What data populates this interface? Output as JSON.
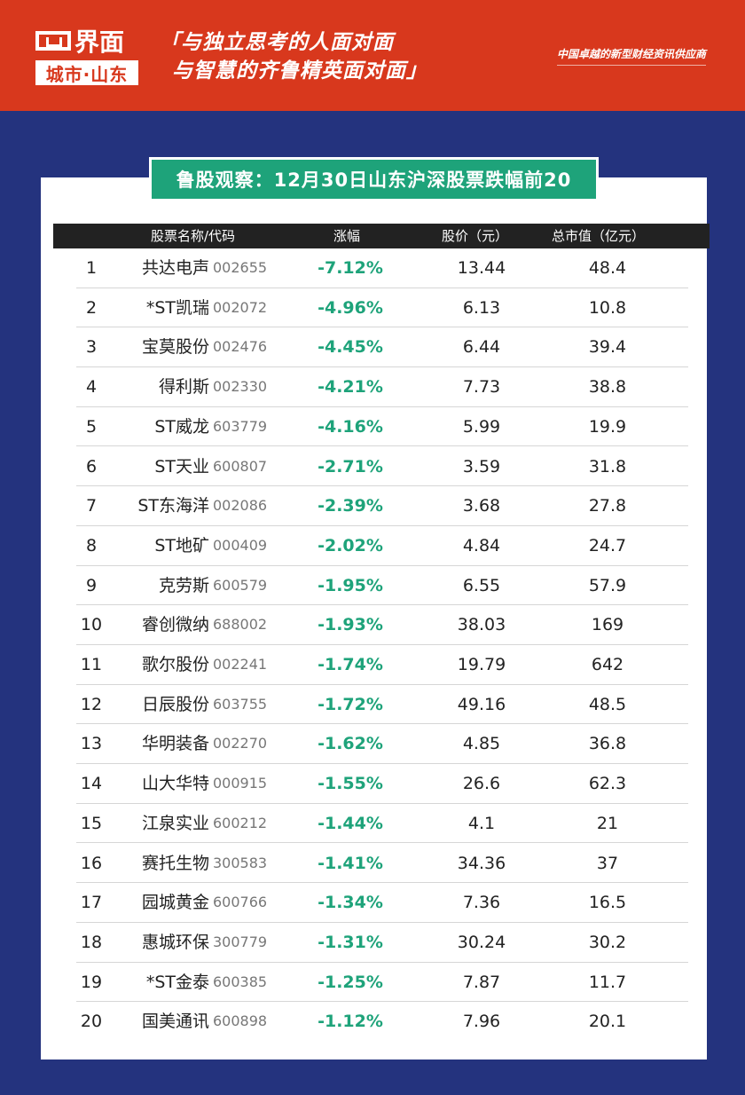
{
  "header": {
    "logo_top": "界面",
    "logo_bottom": "城市·山东",
    "slogan_line1": "「与独立思考的人面对面",
    "slogan_line2": "与智慧的齐鲁精英面对面」",
    "tagline": "中国卓越的新型财经资讯供应商",
    "bg_color": "#d8381d"
  },
  "title": "鲁股观察：12月30日山东沪深股票跌幅前20",
  "columns": {
    "name": "股票名称/代码",
    "change": "涨幅",
    "price": "股价（元）",
    "cap": "总市值（亿元）"
  },
  "rows": [
    {
      "rank": "1",
      "name": "共达电声",
      "code": "002655",
      "change": "-7.12%",
      "price": "13.44",
      "cap": "48.4"
    },
    {
      "rank": "2",
      "name": "*ST凯瑞",
      "code": "002072",
      "change": "-4.96%",
      "price": "6.13",
      "cap": "10.8"
    },
    {
      "rank": "3",
      "name": "宝莫股份",
      "code": "002476",
      "change": "-4.45%",
      "price": "6.44",
      "cap": "39.4"
    },
    {
      "rank": "4",
      "name": "得利斯",
      "code": "002330",
      "change": "-4.21%",
      "price": "7.73",
      "cap": "38.8"
    },
    {
      "rank": "5",
      "name": "ST威龙",
      "code": "603779",
      "change": "-4.16%",
      "price": "5.99",
      "cap": "19.9"
    },
    {
      "rank": "6",
      "name": "ST天业",
      "code": "600807",
      "change": "-2.71%",
      "price": "3.59",
      "cap": "31.8"
    },
    {
      "rank": "7",
      "name": "ST东海洋",
      "code": "002086",
      "change": "-2.39%",
      "price": "3.68",
      "cap": "27.8"
    },
    {
      "rank": "8",
      "name": "ST地矿",
      "code": "000409",
      "change": "-2.02%",
      "price": "4.84",
      "cap": "24.7"
    },
    {
      "rank": "9",
      "name": "克劳斯",
      "code": "600579",
      "change": "-1.95%",
      "price": "6.55",
      "cap": "57.9"
    },
    {
      "rank": "10",
      "name": "睿创微纳",
      "code": "688002",
      "change": "-1.93%",
      "price": "38.03",
      "cap": "169"
    },
    {
      "rank": "11",
      "name": "歌尔股份",
      "code": "002241",
      "change": "-1.74%",
      "price": "19.79",
      "cap": "642"
    },
    {
      "rank": "12",
      "name": "日辰股份",
      "code": "603755",
      "change": "-1.72%",
      "price": "49.16",
      "cap": "48.5"
    },
    {
      "rank": "13",
      "name": "华明装备",
      "code": "002270",
      "change": "-1.62%",
      "price": "4.85",
      "cap": "36.8"
    },
    {
      "rank": "14",
      "name": "山大华特",
      "code": "000915",
      "change": "-1.55%",
      "price": "26.6",
      "cap": "62.3"
    },
    {
      "rank": "15",
      "name": "江泉实业",
      "code": "600212",
      "change": "-1.44%",
      "price": "4.1",
      "cap": "21"
    },
    {
      "rank": "16",
      "name": "赛托生物",
      "code": "300583",
      "change": "-1.41%",
      "price": "34.36",
      "cap": "37"
    },
    {
      "rank": "17",
      "name": "园城黄金",
      "code": "600766",
      "change": "-1.34%",
      "price": "7.36",
      "cap": "16.5"
    },
    {
      "rank": "18",
      "name": "惠城环保",
      "code": "300779",
      "change": "-1.31%",
      "price": "30.24",
      "cap": "30.2"
    },
    {
      "rank": "19",
      "name": "*ST金泰",
      "code": "600385",
      "change": "-1.25%",
      "price": "7.87",
      "cap": "11.7"
    },
    {
      "rank": "20",
      "name": "国美通讯",
      "code": "600898",
      "change": "-1.12%",
      "price": "7.96",
      "cap": "20.1"
    }
  ],
  "colors": {
    "background": "#24337e",
    "accent_green": "#1ea37a",
    "header_red": "#d8381d"
  }
}
